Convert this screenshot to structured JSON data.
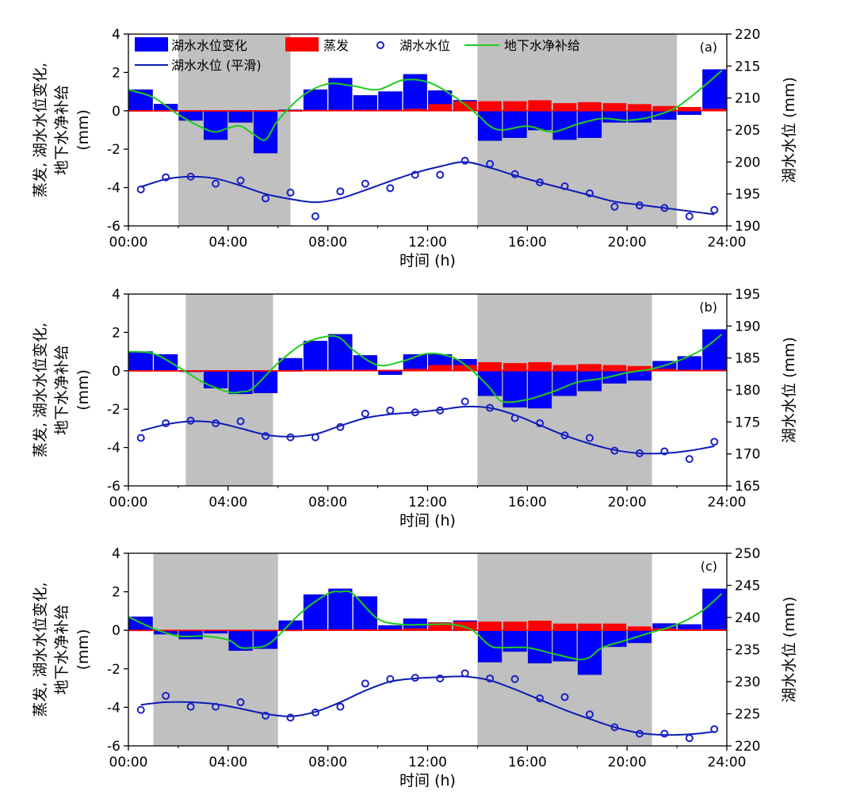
{
  "figure": {
    "legend": {
      "lake_change": "湖水水位变化",
      "evap": "蒸发",
      "lake_level": "湖水水位",
      "groundwater": "地下水净补给",
      "lake_smooth": "湖水水位 (平滑)"
    },
    "colors": {
      "bar": "#0000ff",
      "evap": "#ff0000",
      "green": "#1fcc1f",
      "smooth": "#0b1bb5",
      "marker": "#1a20c8",
      "shade": "#c0c0c0"
    }
  },
  "chart_data": [
    {
      "type": "bar",
      "panel_label": "(a)",
      "xlabel": "时间 (h)",
      "ylabel_left": [
        "蒸发, 湖水水位变化,",
        "地下水净补给",
        "(mm)"
      ],
      "ylabel_right": "湖水水位 (mm)",
      "xlim": [
        0,
        24
      ],
      "xticks": [
        "00:00",
        "04:00",
        "08:00",
        "12:00",
        "16:00",
        "20:00",
        "24:00"
      ],
      "ylim_left": [
        -6,
        4
      ],
      "yticks_left": [
        "-6",
        "-4",
        "-2",
        "0",
        "2",
        "4"
      ],
      "ylim_right": [
        190,
        220
      ],
      "yticks_right": [
        "190",
        "195",
        "200",
        "205",
        "210",
        "215",
        "220"
      ],
      "shaded_intervals": [
        [
          2,
          6.5
        ],
        [
          14,
          22
        ]
      ],
      "x": [
        0.5,
        1.5,
        2.5,
        3.5,
        4.5,
        5.5,
        6.5,
        7.5,
        8.5,
        9.5,
        10.5,
        11.5,
        12.5,
        13.5,
        14.5,
        15.5,
        16.5,
        17.5,
        18.5,
        19.5,
        20.5,
        21.5,
        22.5,
        23.5
      ],
      "lake_level_change": [
        1.1,
        0.35,
        -0.5,
        -1.5,
        -0.6,
        -2.2,
        0.05,
        1.1,
        1.7,
        0.8,
        1.0,
        1.9,
        1.05,
        0.55,
        -1.55,
        -1.4,
        -1.0,
        -1.5,
        -1.4,
        -0.6,
        -0.6,
        -0.45,
        -0.2,
        2.15
      ],
      "evaporation": [
        0.02,
        0.02,
        0.02,
        0.02,
        0.02,
        0.02,
        0.02,
        0.05,
        0.05,
        0.05,
        0.05,
        0.1,
        0.35,
        0.5,
        0.5,
        0.5,
        0.55,
        0.4,
        0.45,
        0.4,
        0.35,
        0.25,
        0.2,
        0.1
      ],
      "groundwater_x": [
        0,
        1,
        2,
        3,
        3.5,
        4,
        4.5,
        5,
        5.5,
        6,
        7,
        8,
        9,
        10,
        11,
        12,
        13,
        14,
        14.5,
        15,
        16,
        17,
        18,
        19,
        20,
        21,
        22,
        23,
        23.8
      ],
      "groundwater_net_recharge": [
        1.1,
        0.7,
        -0.2,
        -0.9,
        -1.1,
        -0.9,
        -0.8,
        -1.2,
        -1.5,
        -0.5,
        0.8,
        1.4,
        1.3,
        1.1,
        1.6,
        1.5,
        0.8,
        -0.2,
        -0.8,
        -1.0,
        -0.8,
        -1.1,
        -0.7,
        -0.4,
        -0.5,
        -0.3,
        0.2,
        1.2,
        2.1
      ],
      "lake_level": [
        195.7,
        197.6,
        197.7,
        196.6,
        197.1,
        194.3,
        195.2,
        191.5,
        195.4,
        196.6,
        195.9,
        198.0,
        198.0,
        200.2,
        199.7,
        198.1,
        196.8,
        196.2,
        195.1,
        193.0,
        193.2,
        192.8,
        191.5,
        192.5
      ],
      "lake_level_smooth_x": [
        0.5,
        1.5,
        2.5,
        3.5,
        4.5,
        5.5,
        6.5,
        7.5,
        8.5,
        9.5,
        10.5,
        11.5,
        12.5,
        13.5,
        14.5,
        15.5,
        16.5,
        17.5,
        18.5,
        19.5,
        20.5,
        21.5,
        22.5,
        23.5
      ],
      "lake_level_smooth": [
        196.1,
        197.3,
        197.7,
        197.4,
        196.3,
        195.0,
        194.2,
        193.7,
        194.3,
        195.6,
        197.0,
        198.3,
        199.3,
        200.0,
        199.1,
        197.9,
        196.8,
        195.8,
        194.8,
        193.8,
        193.3,
        192.8,
        192.3,
        191.8
      ]
    },
    {
      "type": "bar",
      "panel_label": "(b)",
      "xlabel": "时间 (h)",
      "ylabel_left": [
        "蒸发, 湖水水位变化,",
        "地下水净补给",
        "(mm)"
      ],
      "ylabel_right": "湖水水位 (mm)",
      "xlim": [
        0,
        24
      ],
      "xticks": [
        "00:00",
        "04:00",
        "08:00",
        "12:00",
        "16:00",
        "20:00",
        "24:00"
      ],
      "ylim_left": [
        -6,
        4
      ],
      "yticks_left": [
        "-6",
        "-4",
        "-2",
        "0",
        "2",
        "4"
      ],
      "ylim_right": [
        165,
        195
      ],
      "yticks_right": [
        "165",
        "170",
        "175",
        "180",
        "185",
        "190",
        "195"
      ],
      "shaded_intervals": [
        [
          2.3,
          5.8
        ],
        [
          14,
          21
        ]
      ],
      "x": [
        0.5,
        1.5,
        2.5,
        3.5,
        4.5,
        5.5,
        6.5,
        7.5,
        8.5,
        9.5,
        10.5,
        11.5,
        12.5,
        13.5,
        14.5,
        15.5,
        16.5,
        17.5,
        18.5,
        19.5,
        20.5,
        21.5,
        22.5,
        23.5
      ],
      "lake_level_change": [
        1.0,
        0.85,
        -0.05,
        -0.9,
        -1.2,
        -1.15,
        0.65,
        1.55,
        1.9,
        0.8,
        -0.2,
        0.85,
        0.85,
        0.6,
        -1.3,
        -1.9,
        -1.95,
        -1.3,
        -1.05,
        -0.65,
        -0.5,
        0.5,
        0.75,
        2.15
      ],
      "evaporation": [
        0.02,
        0.02,
        0.02,
        0.02,
        0.02,
        0.02,
        0.02,
        0.05,
        0.05,
        0.05,
        0.05,
        0.1,
        0.3,
        0.3,
        0.45,
        0.4,
        0.45,
        0.3,
        0.35,
        0.3,
        0.25,
        0.1,
        0.05,
        0.05
      ],
      "groundwater_x": [
        0,
        1,
        2,
        3,
        4,
        4.5,
        5,
        6,
        7,
        8,
        8.5,
        9,
        10,
        11,
        12,
        13,
        13.8,
        14.5,
        15,
        16,
        17,
        18,
        19,
        20,
        21,
        22,
        23,
        23.8
      ],
      "groundwater_net_recharge": [
        1.0,
        0.9,
        0.2,
        -0.6,
        -1.1,
        -1.1,
        -0.9,
        0.4,
        1.4,
        1.8,
        1.7,
        1.1,
        0.3,
        0.5,
        0.9,
        0.7,
        0.0,
        -0.9,
        -1.6,
        -1.5,
        -1.1,
        -0.6,
        -0.4,
        -0.1,
        0.1,
        0.5,
        1.1,
        1.9
      ],
      "lake_level": [
        172.5,
        174.8,
        175.2,
        174.8,
        175.1,
        172.8,
        172.6,
        172.6,
        174.2,
        176.3,
        176.8,
        176.5,
        176.8,
        178.2,
        177.2,
        175.6,
        174.8,
        172.9,
        172.5,
        170.5,
        170.1,
        170.4,
        169.2,
        171.9
      ],
      "lake_level_smooth_x": [
        0.5,
        1.5,
        2.5,
        3.5,
        4.5,
        5.5,
        6.5,
        7.5,
        8.5,
        9.5,
        10.5,
        11.5,
        12.5,
        13.5,
        14.5,
        15.5,
        16.5,
        17.5,
        18.5,
        19.5,
        20.5,
        21.5,
        22.5,
        23.5
      ],
      "lake_level_smooth": [
        173.6,
        174.6,
        175.1,
        174.9,
        174.0,
        173.0,
        172.7,
        173.1,
        174.4,
        175.6,
        176.2,
        176.5,
        176.9,
        177.4,
        177.2,
        176.1,
        174.5,
        172.9,
        171.6,
        170.6,
        170.1,
        170.1,
        170.5,
        171.2
      ]
    },
    {
      "type": "bar",
      "panel_label": "(c)",
      "xlabel": "时间 (h)",
      "ylabel_left": [
        "蒸发, 湖水水位变化,",
        "地下水净补给",
        "(mm)"
      ],
      "ylabel_right": "湖水水位 (mm)",
      "xlim": [
        0,
        24
      ],
      "xticks": [
        "00:00",
        "04:00",
        "08:00",
        "12:00",
        "16:00",
        "20:00",
        "24:00"
      ],
      "ylim_left": [
        -6,
        4
      ],
      "yticks_left": [
        "-6",
        "-4",
        "-2",
        "0",
        "2",
        "4"
      ],
      "ylim_right": [
        220,
        250
      ],
      "yticks_right": [
        "220",
        "225",
        "230",
        "235",
        "240",
        "245",
        "250"
      ],
      "shaded_intervals": [
        [
          1,
          6
        ],
        [
          14,
          21
        ]
      ],
      "x": [
        0.5,
        1.5,
        2.5,
        3.5,
        4.5,
        5.5,
        6.5,
        7.5,
        8.5,
        9.5,
        10.5,
        11.5,
        12.5,
        13.5,
        14.5,
        15.5,
        16.5,
        17.5,
        18.5,
        19.5,
        20.5,
        21.5,
        22.5,
        23.5
      ],
      "lake_level_change": [
        0.7,
        -0.2,
        -0.45,
        -0.15,
        -1.05,
        -0.95,
        0.5,
        1.85,
        2.15,
        1.75,
        0.25,
        0.6,
        0.4,
        0.5,
        -1.65,
        -1.1,
        -1.7,
        -1.6,
        -2.3,
        -0.85,
        -0.65,
        0.35,
        0.3,
        2.15
      ],
      "evaporation": [
        0.02,
        0.02,
        0.02,
        0.02,
        0.02,
        0.02,
        0.02,
        0.05,
        0.05,
        0.05,
        0.05,
        0.1,
        0.4,
        0.45,
        0.45,
        0.45,
        0.5,
        0.35,
        0.35,
        0.35,
        0.2,
        0.1,
        0.05,
        0.05
      ],
      "groundwater_x": [
        0,
        1,
        2,
        3,
        4,
        4.5,
        5,
        5.5,
        6,
        7,
        8,
        8.5,
        9,
        10,
        11,
        12,
        13,
        13.8,
        14.5,
        15,
        16,
        17,
        18,
        18.5,
        19,
        20,
        21,
        22,
        23,
        23.8
      ],
      "groundwater_net_recharge": [
        0.7,
        0.1,
        -0.3,
        -0.3,
        -0.5,
        -0.9,
        -0.9,
        -0.8,
        -0.3,
        1.0,
        1.9,
        2.0,
        1.9,
        0.6,
        0.3,
        0.3,
        0.3,
        0.0,
        -0.8,
        -0.9,
        -0.9,
        -1.2,
        -1.5,
        -1.4,
        -0.9,
        -0.5,
        -0.1,
        0.3,
        1.0,
        1.9
      ],
      "lake_level": [
        225.6,
        227.8,
        226.1,
        226.1,
        226.8,
        224.7,
        224.4,
        225.2,
        226.1,
        229.7,
        230.4,
        230.6,
        230.5,
        231.3,
        230.5,
        230.4,
        227.4,
        227.6,
        224.9,
        222.9,
        221.9,
        221.9,
        221.2,
        222.6
      ],
      "lake_level_smooth_x": [
        0.5,
        1.5,
        2.5,
        3.5,
        4.5,
        5.5,
        6.5,
        7.5,
        8.5,
        9.5,
        10.5,
        11.5,
        12.5,
        13.5,
        14.5,
        15.5,
        16.5,
        17.5,
        18.5,
        19.5,
        20.5,
        21.5,
        22.5,
        23.5
      ],
      "lake_level_smooth": [
        226.4,
        226.8,
        226.8,
        226.5,
        225.8,
        225.0,
        224.6,
        225.3,
        226.8,
        228.6,
        230.0,
        230.5,
        230.7,
        230.8,
        230.2,
        228.8,
        227.2,
        225.6,
        224.2,
        222.9,
        222.0,
        221.7,
        221.8,
        222.2
      ]
    }
  ]
}
